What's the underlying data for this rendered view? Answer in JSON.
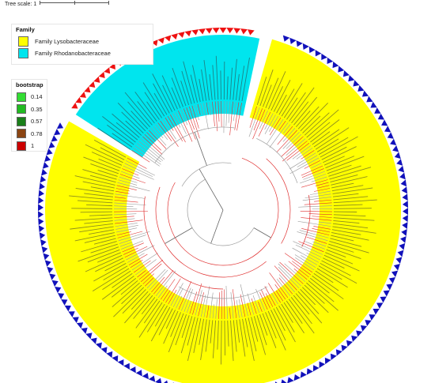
{
  "tree_scale": {
    "label": "Tree scale:",
    "value": "1"
  },
  "legend_family": {
    "title": "Family",
    "items": [
      {
        "label": "Family Lysobacteraceae",
        "color": "#ffff00"
      },
      {
        "label": "Family Rhodanobacteraceae",
        "color": "#00e5ee"
      }
    ]
  },
  "legend_bootstrap": {
    "title": "bootstrap",
    "items": [
      {
        "label": "0.14",
        "color": "#33dd33"
      },
      {
        "label": "0.35",
        "color": "#22bb22"
      },
      {
        "label": "0.57",
        "color": "#1a7f1a"
      },
      {
        "label": "0.78",
        "color": "#8b4513"
      },
      {
        "label": "1",
        "color": "#cc0000"
      }
    ]
  },
  "colors": {
    "lysobacteraceae": "#ffff00",
    "rhodanobacteraceae": "#00e5ee",
    "marker_rhodano": "#ee1111",
    "marker_lyso": "#1111bb",
    "branch_low": "#999999",
    "branch_high": "#e03030"
  },
  "markers": {
    "rhodano_shape": "triangle-red",
    "lyso_shape": "triangle-blue"
  }
}
